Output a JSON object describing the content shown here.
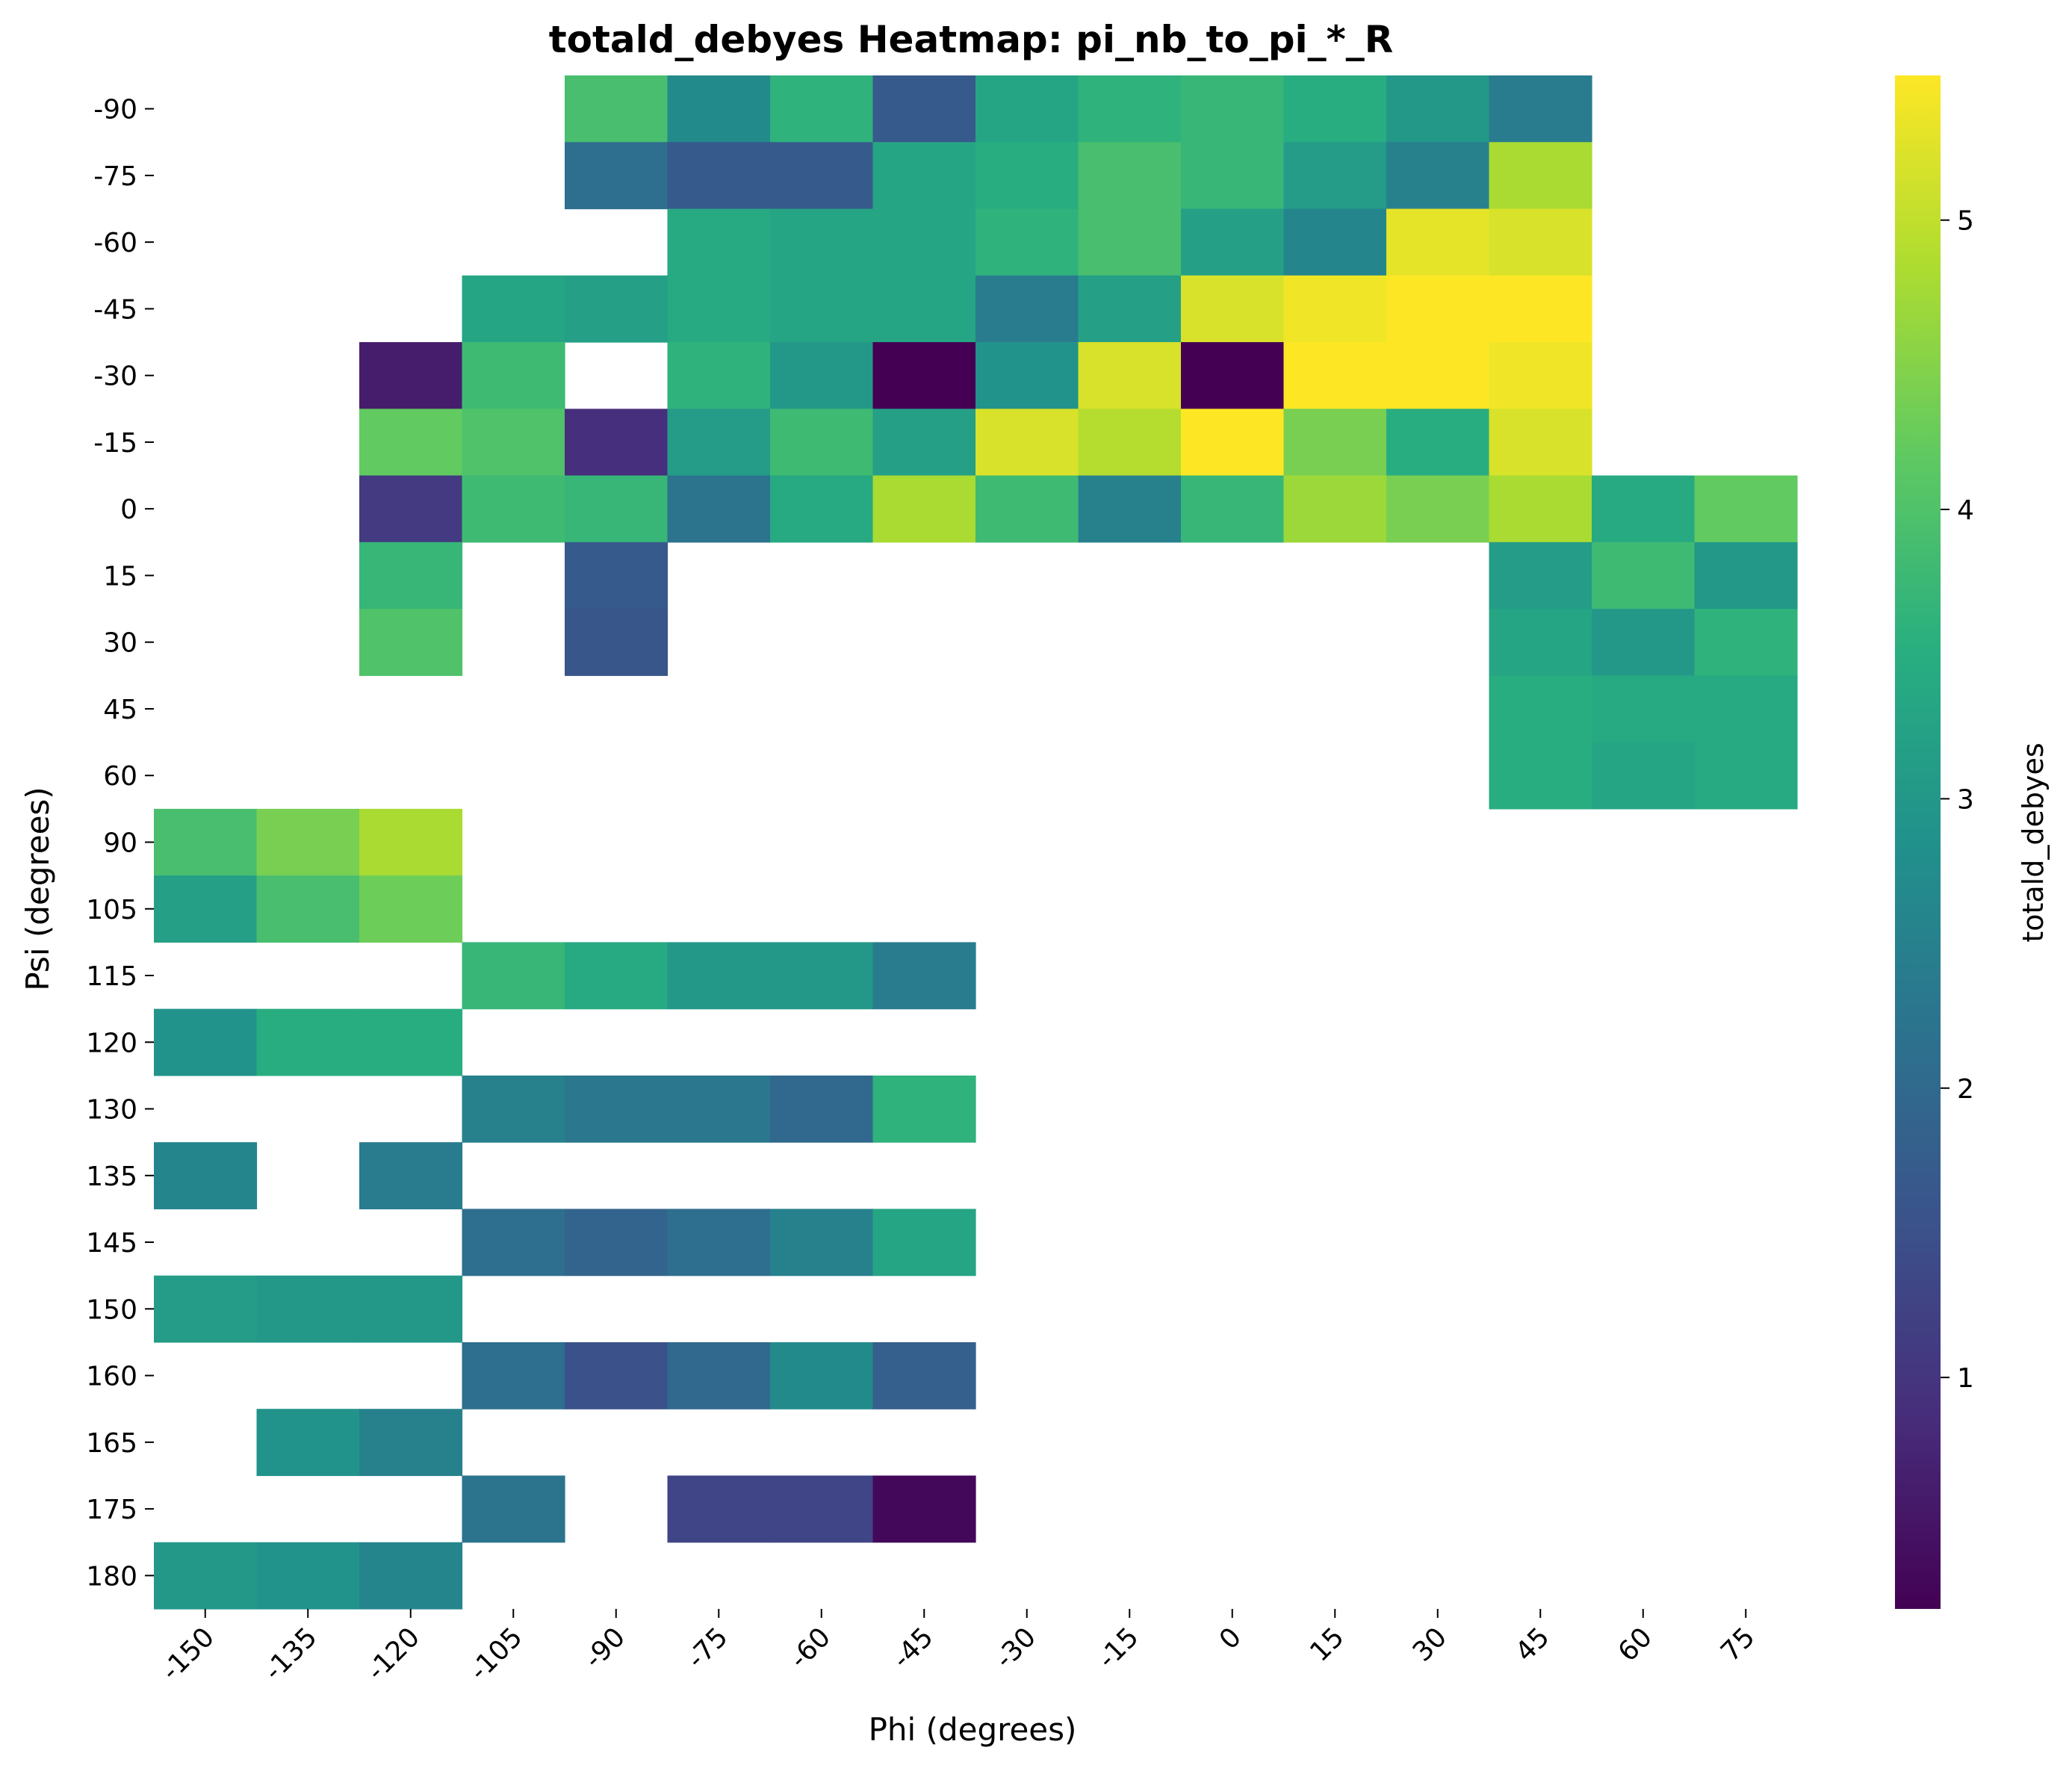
{
  "chart_data": {
    "type": "heatmap",
    "title": "totald_debyes Heatmap: pi_nb_to_pi_*_R",
    "xlabel": "Phi (degrees)",
    "ylabel": "Psi (degrees)",
    "colorbar_label": "totald_debyes",
    "colormap": "viridis",
    "value_range": [
      0.2,
      5.5
    ],
    "colorbar_ticks": [
      1,
      2,
      3,
      4,
      5
    ],
    "x": [
      -150,
      -135,
      -120,
      -105,
      -90,
      -75,
      -60,
      -45,
      -30,
      -15,
      0,
      15,
      30,
      45,
      60,
      75
    ],
    "y": [
      -90,
      -75,
      -60,
      -45,
      -30,
      -15,
      0,
      15,
      30,
      45,
      60,
      90,
      105,
      115,
      120,
      130,
      135,
      145,
      150,
      160,
      165,
      175,
      180
    ],
    "values": [
      [
        null,
        null,
        null,
        null,
        3.9,
        2.7,
        3.6,
        1.7,
        3.3,
        3.6,
        3.7,
        3.5,
        3.0,
        2.4,
        null,
        null
      ],
      [
        null,
        null,
        null,
        null,
        2.1,
        1.7,
        1.7,
        3.3,
        3.5,
        3.9,
        3.7,
        3.1,
        2.5,
        4.8,
        null,
        null
      ],
      [
        null,
        null,
        null,
        null,
        null,
        3.4,
        3.3,
        3.3,
        3.6,
        3.9,
        3.2,
        2.6,
        5.3,
        5.2,
        null,
        null
      ],
      [
        null,
        null,
        null,
        3.3,
        3.2,
        3.4,
        3.3,
        3.3,
        2.4,
        3.2,
        5.2,
        5.4,
        5.5,
        5.5,
        null,
        null
      ],
      [
        null,
        null,
        0.6,
        3.8,
        null,
        3.6,
        3.0,
        0.2,
        2.9,
        5.2,
        0.2,
        5.5,
        5.5,
        5.4,
        null,
        null
      ],
      [
        null,
        null,
        4.2,
        4.0,
        0.9,
        3.1,
        3.8,
        3.2,
        5.2,
        4.9,
        5.5,
        4.4,
        3.5,
        5.2,
        null,
        null
      ],
      [
        null,
        null,
        1.1,
        3.8,
        3.7,
        2.2,
        3.4,
        4.8,
        3.8,
        2.5,
        3.7,
        4.7,
        4.4,
        4.8,
        3.4,
        4.2
      ],
      [
        null,
        null,
        3.7,
        null,
        1.7,
        null,
        null,
        null,
        null,
        null,
        null,
        null,
        null,
        3.1,
        3.8,
        3.0
      ],
      [
        null,
        null,
        4.0,
        null,
        1.6,
        null,
        null,
        null,
        null,
        null,
        null,
        null,
        null,
        3.3,
        3.0,
        3.6
      ],
      [
        null,
        null,
        null,
        null,
        null,
        null,
        null,
        null,
        null,
        null,
        null,
        null,
        null,
        3.5,
        3.4,
        3.4
      ],
      [
        null,
        null,
        null,
        null,
        null,
        null,
        null,
        null,
        null,
        null,
        null,
        null,
        null,
        3.5,
        3.3,
        3.4
      ],
      [
        3.9,
        4.4,
        4.8,
        null,
        null,
        null,
        null,
        null,
        null,
        null,
        null,
        null,
        null,
        null,
        null,
        null
      ],
      [
        3.2,
        3.9,
        4.3,
        null,
        null,
        null,
        null,
        null,
        null,
        null,
        null,
        null,
        null,
        null,
        null,
        null
      ],
      [
        null,
        null,
        null,
        3.7,
        3.4,
        3.0,
        3.0,
        2.4,
        null,
        null,
        null,
        null,
        null,
        null,
        null,
        null
      ],
      [
        2.9,
        3.5,
        3.5,
        null,
        null,
        null,
        null,
        null,
        null,
        null,
        null,
        null,
        null,
        null,
        null,
        null
      ],
      [
        null,
        null,
        null,
        2.5,
        2.3,
        2.3,
        2.0,
        3.6,
        null,
        null,
        null,
        null,
        null,
        null,
        null,
        null
      ],
      [
        2.6,
        null,
        2.4,
        null,
        null,
        null,
        null,
        null,
        null,
        null,
        null,
        null,
        null,
        null,
        null,
        null
      ],
      [
        null,
        null,
        null,
        2.1,
        1.9,
        2.1,
        2.5,
        3.3,
        null,
        null,
        null,
        null,
        null,
        null,
        null,
        null
      ],
      [
        3.1,
        3.0,
        3.0,
        null,
        null,
        null,
        null,
        null,
        null,
        null,
        null,
        null,
        null,
        null,
        null,
        null
      ],
      [
        null,
        null,
        null,
        2.1,
        1.5,
        2.0,
        2.7,
        1.8,
        null,
        null,
        null,
        null,
        null,
        null,
        null,
        null
      ],
      [
        null,
        2.9,
        2.5,
        null,
        null,
        null,
        null,
        null,
        null,
        null,
        null,
        null,
        null,
        null,
        null,
        null
      ],
      [
        null,
        null,
        null,
        2.2,
        null,
        1.3,
        1.3,
        0.3,
        null,
        null,
        null,
        null,
        null,
        null,
        null,
        null
      ],
      [
        3.0,
        2.9,
        2.6,
        null,
        null,
        null,
        null,
        null,
        null,
        null,
        null,
        null,
        null,
        null,
        null,
        null
      ]
    ]
  }
}
